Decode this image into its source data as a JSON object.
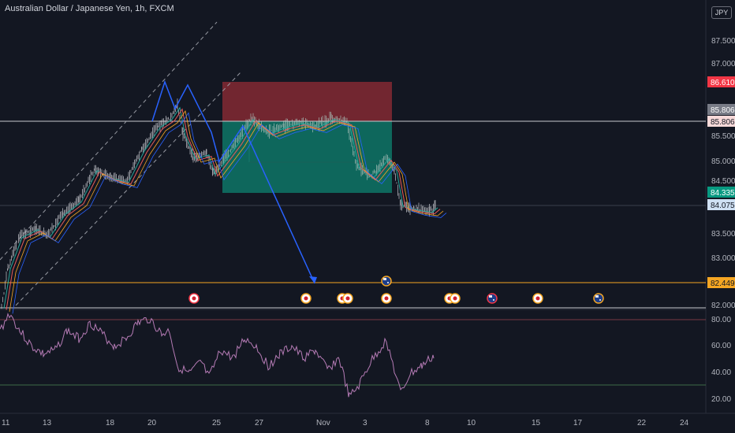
{
  "header": {
    "title": "Australian Dollar / Japanese Yen, 1h, FXCM"
  },
  "currency_button": "JPY",
  "price_axis": {
    "ticks": [
      "87.500",
      "87.000",
      "85.500",
      "85.000",
      "84.500",
      "83.500",
      "83.000",
      "82.000"
    ],
    "tags": [
      {
        "name": "stop-loss-tag",
        "value": "86.610",
        "bg": "#f23645",
        "fg": "#ffffff"
      },
      {
        "name": "line-tag-a",
        "value": "85.806",
        "bg": "#787b86",
        "fg": "#ffffff"
      },
      {
        "name": "line-tag-b",
        "value": "85.806",
        "bg": "#f7d9d9",
        "fg": "#131722"
      },
      {
        "name": "last-price-tag",
        "value": "84.335",
        "bg": "#089981",
        "fg": "#ffffff"
      },
      {
        "name": "current-tag",
        "value": "84.075",
        "bg": "#cfe0f3",
        "fg": "#131722"
      },
      {
        "name": "target-tag",
        "value": "82.449",
        "bg": "#f5a623",
        "fg": "#131722"
      }
    ]
  },
  "rsi_axis": {
    "ticks": [
      "80.00",
      "60.00",
      "40.00",
      "20.00"
    ]
  },
  "time_axis": {
    "labels": [
      "11",
      "13",
      "18",
      "20",
      "25",
      "27",
      "Nov",
      "3",
      "8",
      "10",
      "15",
      "17",
      "22",
      "24"
    ]
  },
  "colors": {
    "background": "#131722",
    "risk_zone": "#8b2a34",
    "reward_zone": "#0e7566",
    "wave_line": "#2962ff",
    "target_line": "#f5a623",
    "rsi_line": "#b57bb5"
  },
  "event_icons": [
    "japan-flag-icon",
    "australia-flag-icon"
  ]
}
